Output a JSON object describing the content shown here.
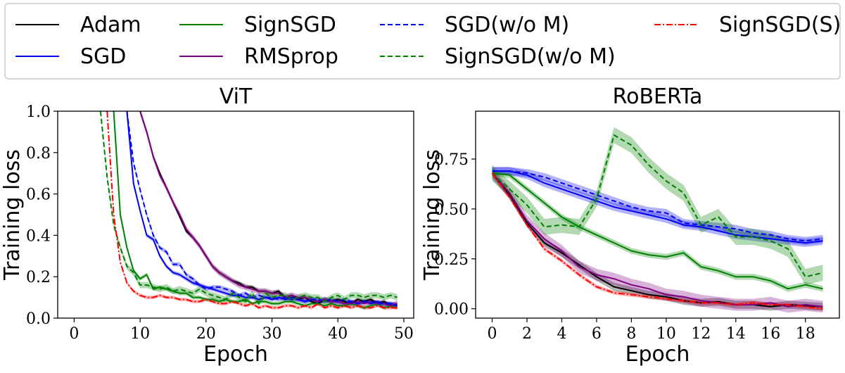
{
  "legend": {
    "entries": [
      {
        "name": "Adam",
        "color": "#000000",
        "dash": "solid"
      },
      {
        "name": "SGD",
        "color": "#0000ee",
        "dash": "solid"
      },
      {
        "name": "SignSGD",
        "color": "#008000",
        "dash": "solid"
      },
      {
        "name": "RMSprop",
        "color": "#800080",
        "dash": "solid"
      },
      {
        "name": "SGD(w/o M)",
        "color": "#0000ee",
        "dash": "dashed"
      },
      {
        "name": "SignSGD(w/o M)",
        "color": "#008000",
        "dash": "dashed"
      },
      {
        "name": "SignSGD(S)",
        "color": "#ff0000",
        "dash": "dashdot"
      }
    ]
  },
  "chart_data": [
    {
      "type": "line",
      "title": "ViT",
      "xlabel": "Epoch",
      "ylabel": "Training loss",
      "xlim": [
        -2.5,
        51.5
      ],
      "ylim": [
        0.0,
        1.0
      ],
      "xticks": [
        0,
        10,
        20,
        30,
        40,
        50
      ],
      "yticks": [
        0.0,
        0.2,
        0.4,
        0.6,
        0.8,
        1.0
      ],
      "ytick_labels": [
        "0.0",
        "0.2",
        "0.4",
        "0.6",
        "0.8",
        "1.0"
      ],
      "series": [
        {
          "name": "Adam",
          "x": [
            10,
            11,
            12,
            13,
            14,
            15,
            16,
            17,
            18,
            19,
            20,
            21,
            22,
            23,
            24,
            25,
            26,
            27,
            28,
            29,
            30,
            31,
            32,
            33,
            34,
            35,
            36,
            37,
            38,
            39,
            40,
            41,
            42,
            43,
            44,
            45,
            46,
            47,
            48,
            49
          ],
          "values": [
            1.0,
            0.9,
            0.78,
            0.7,
            0.63,
            0.56,
            0.49,
            0.42,
            0.39,
            0.35,
            0.3,
            0.25,
            0.22,
            0.2,
            0.18,
            0.17,
            0.15,
            0.15,
            0.13,
            0.13,
            0.12,
            0.13,
            0.1,
            0.11,
            0.09,
            0.1,
            0.08,
            0.07,
            0.09,
            0.08,
            0.09,
            0.08,
            0.07,
            0.09,
            0.08,
            0.09,
            0.07,
            0.08,
            0.06,
            0.07
          ],
          "band": 0.01
        },
        {
          "name": "SGD",
          "x": [
            8,
            9,
            10,
            11,
            12,
            13,
            14,
            15,
            16,
            17,
            18,
            19,
            20,
            21,
            22,
            23,
            24,
            25,
            26,
            27,
            28,
            29,
            30,
            31,
            32,
            33,
            34,
            35,
            36,
            37,
            38,
            39,
            40,
            41,
            42,
            43,
            44,
            45,
            46,
            47,
            48,
            49
          ],
          "values": [
            1.0,
            0.65,
            0.52,
            0.4,
            0.38,
            0.3,
            0.25,
            0.22,
            0.21,
            0.19,
            0.17,
            0.16,
            0.15,
            0.14,
            0.13,
            0.12,
            0.11,
            0.11,
            0.1,
            0.1,
            0.09,
            0.1,
            0.09,
            0.1,
            0.09,
            0.1,
            0.09,
            0.08,
            0.09,
            0.08,
            0.09,
            0.08,
            0.08,
            0.07,
            0.08,
            0.07,
            0.08,
            0.07,
            0.08,
            0.07,
            0.07,
            0.06
          ],
          "band": 0.01
        },
        {
          "name": "SignSGD",
          "x": [
            6,
            7,
            8,
            9,
            10,
            11,
            12,
            13,
            14,
            15,
            16,
            17,
            18,
            19,
            20,
            21,
            22,
            23,
            24,
            25,
            26,
            27,
            28,
            29,
            30,
            31,
            32,
            33,
            34,
            35,
            36,
            37,
            38,
            39,
            40,
            41,
            42,
            43,
            44,
            45,
            46,
            47,
            48,
            49
          ],
          "values": [
            1.0,
            0.5,
            0.34,
            0.23,
            0.19,
            0.21,
            0.14,
            0.15,
            0.14,
            0.13,
            0.12,
            0.12,
            0.1,
            0.1,
            0.09,
            0.09,
            0.08,
            0.09,
            0.08,
            0.08,
            0.09,
            0.07,
            0.08,
            0.08,
            0.07,
            0.07,
            0.08,
            0.08,
            0.07,
            0.06,
            0.07,
            0.07,
            0.06,
            0.07,
            0.06,
            0.06,
            0.07,
            0.06,
            0.05,
            0.06,
            0.07,
            0.05,
            0.06,
            0.05
          ],
          "band": 0.01
        },
        {
          "name": "RMSprop",
          "x": [
            10,
            11,
            12,
            13,
            14,
            15,
            16,
            17,
            18,
            19,
            20,
            21,
            22,
            23,
            24,
            25,
            26,
            27,
            28,
            29,
            30,
            31,
            32,
            33,
            34,
            35,
            36,
            37,
            38,
            39,
            40,
            41,
            42,
            43,
            44,
            45,
            46,
            47,
            48,
            49
          ],
          "values": [
            1.0,
            0.9,
            0.78,
            0.69,
            0.63,
            0.56,
            0.5,
            0.43,
            0.39,
            0.35,
            0.3,
            0.25,
            0.22,
            0.2,
            0.18,
            0.16,
            0.15,
            0.14,
            0.13,
            0.13,
            0.12,
            0.12,
            0.1,
            0.11,
            0.1,
            0.1,
            0.09,
            0.08,
            0.09,
            0.08,
            0.08,
            0.07,
            0.07,
            0.08,
            0.07,
            0.08,
            0.07,
            0.07,
            0.06,
            0.07
          ],
          "band": 0.015
        },
        {
          "name": "SGD(w/o M)",
          "x": [
            8,
            9,
            10,
            11,
            12,
            13,
            14,
            15,
            16,
            17,
            18,
            19,
            20,
            21,
            22,
            23,
            24,
            25,
            26,
            27,
            28,
            29,
            30,
            31,
            32,
            33,
            34,
            35,
            36,
            37,
            38,
            39,
            40,
            41,
            42,
            43,
            44,
            45,
            46,
            47,
            48,
            49
          ],
          "values": [
            1.0,
            0.75,
            0.62,
            0.5,
            0.4,
            0.34,
            0.32,
            0.26,
            0.26,
            0.21,
            0.19,
            0.16,
            0.14,
            0.15,
            0.15,
            0.14,
            0.13,
            0.11,
            0.12,
            0.1,
            0.11,
            0.1,
            0.1,
            0.09,
            0.1,
            0.09,
            0.09,
            0.08,
            0.09,
            0.09,
            0.08,
            0.09,
            0.08,
            0.09,
            0.08,
            0.07,
            0.08,
            0.08,
            0.07,
            0.07,
            0.07,
            0.06
          ],
          "band": 0.01
        },
        {
          "name": "SignSGD(w/o M)",
          "x": [
            4,
            5,
            6,
            7,
            8,
            9,
            10,
            11,
            12,
            13,
            14,
            15,
            16,
            17,
            18,
            19,
            20,
            21,
            22,
            23,
            24,
            25,
            26,
            27,
            28,
            29,
            30,
            31,
            32,
            33,
            34,
            35,
            36,
            37,
            38,
            39,
            40,
            41,
            42,
            43,
            44,
            45,
            46,
            47,
            48,
            49
          ],
          "values": [
            1.0,
            0.68,
            0.45,
            0.34,
            0.25,
            0.22,
            0.16,
            0.16,
            0.15,
            0.14,
            0.15,
            0.13,
            0.14,
            0.13,
            0.12,
            0.14,
            0.12,
            0.11,
            0.1,
            0.09,
            0.12,
            0.1,
            0.08,
            0.12,
            0.07,
            0.12,
            0.1,
            0.11,
            0.11,
            0.09,
            0.1,
            0.11,
            0.1,
            0.1,
            0.08,
            0.1,
            0.11,
            0.09,
            0.11,
            0.11,
            0.1,
            0.11,
            0.11,
            0.1,
            0.11,
            0.1
          ],
          "band": 0.015
        },
        {
          "name": "SignSGD(S)",
          "x": [
            5,
            6,
            7,
            8,
            9,
            10,
            11,
            12,
            13,
            14,
            15,
            16,
            17,
            18,
            19,
            20,
            21,
            22,
            23,
            24,
            25,
            26,
            27,
            28,
            29,
            30,
            31,
            32,
            33,
            34,
            35,
            36,
            37,
            38,
            39,
            40,
            41,
            42,
            43,
            44,
            45,
            46,
            47,
            48,
            49
          ],
          "values": [
            1.0,
            0.5,
            0.27,
            0.17,
            0.13,
            0.11,
            0.1,
            0.1,
            0.11,
            0.1,
            0.1,
            0.09,
            0.09,
            0.08,
            0.08,
            0.09,
            0.08,
            0.07,
            0.07,
            0.08,
            0.07,
            0.06,
            0.07,
            0.05,
            0.06,
            0.05,
            0.05,
            0.06,
            0.06,
            0.05,
            0.06,
            0.05,
            0.07,
            0.05,
            0.06,
            0.05,
            0.06,
            0.05,
            0.06,
            0.05,
            0.05,
            0.06,
            0.05,
            0.05,
            0.05
          ],
          "band": 0.008
        }
      ]
    },
    {
      "type": "line",
      "title": "RoBERTa",
      "xlabel": "Epoch",
      "ylabel": "Training loss",
      "xlim": [
        -0.95,
        19.95
      ],
      "ylim": [
        -0.047,
        0.99
      ],
      "xticks": [
        0,
        2,
        4,
        6,
        8,
        10,
        12,
        14,
        16,
        18
      ],
      "yticks": [
        0.0,
        0.25,
        0.5,
        0.75
      ],
      "ytick_labels": [
        "0.00",
        "0.25",
        "0.50",
        "0.75"
      ],
      "series": [
        {
          "name": "Adam",
          "x": [
            0,
            1,
            2,
            3,
            4,
            5,
            6,
            7,
            8,
            9,
            10,
            11,
            12,
            13,
            14,
            15,
            16,
            17,
            18,
            19
          ],
          "values": [
            0.68,
            0.57,
            0.43,
            0.33,
            0.28,
            0.22,
            0.16,
            0.11,
            0.09,
            0.07,
            0.06,
            0.04,
            0.03,
            0.035,
            0.02,
            0.02,
            0.01,
            0.02,
            0.015,
            0.01
          ],
          "band": 0.02
        },
        {
          "name": "SGD",
          "x": [
            0,
            1,
            2,
            3,
            4,
            5,
            6,
            7,
            8,
            9,
            10,
            11,
            12,
            13,
            14,
            15,
            16,
            17,
            18,
            19
          ],
          "values": [
            0.69,
            0.69,
            0.67,
            0.63,
            0.6,
            0.57,
            0.54,
            0.51,
            0.49,
            0.47,
            0.45,
            0.42,
            0.41,
            0.39,
            0.37,
            0.36,
            0.35,
            0.34,
            0.33,
            0.34
          ],
          "band": 0.02
        },
        {
          "name": "SignSGD",
          "x": [
            0,
            1,
            2,
            3,
            4,
            5,
            6,
            7,
            8,
            9,
            10,
            11,
            12,
            13,
            14,
            15,
            16,
            17,
            18,
            19
          ],
          "values": [
            0.68,
            0.67,
            0.6,
            0.53,
            0.46,
            0.41,
            0.37,
            0.33,
            0.29,
            0.27,
            0.26,
            0.28,
            0.21,
            0.19,
            0.16,
            0.16,
            0.14,
            0.1,
            0.12,
            0.1
          ],
          "band": 0.015
        },
        {
          "name": "RMSprop",
          "x": [
            0,
            1,
            2,
            3,
            4,
            5,
            6,
            7,
            8,
            9,
            10,
            11,
            12,
            13,
            14,
            15,
            16,
            17,
            18,
            19
          ],
          "values": [
            0.68,
            0.58,
            0.44,
            0.35,
            0.29,
            0.21,
            0.17,
            0.15,
            0.12,
            0.1,
            0.07,
            0.06,
            0.04,
            0.03,
            0.02,
            0.02,
            0.03,
            0.01,
            0.02,
            0.01
          ],
          "band": 0.03
        },
        {
          "name": "SGD(w/o M)",
          "x": [
            0,
            1,
            2,
            3,
            4,
            5,
            6,
            7,
            8,
            9,
            10,
            11,
            12,
            13,
            14,
            15,
            16,
            17,
            18,
            19
          ],
          "values": [
            0.69,
            0.69,
            0.68,
            0.66,
            0.63,
            0.6,
            0.57,
            0.54,
            0.51,
            0.49,
            0.48,
            0.43,
            0.42,
            0.41,
            0.4,
            0.38,
            0.37,
            0.35,
            0.34,
            0.35
          ],
          "band": 0.02
        },
        {
          "name": "SignSGD(w/o M)",
          "x": [
            0,
            1,
            2,
            3,
            4,
            5,
            6,
            7,
            8,
            9,
            10,
            11,
            12,
            13,
            14,
            15,
            16,
            17,
            18,
            19
          ],
          "values": [
            0.68,
            0.6,
            0.52,
            0.41,
            0.42,
            0.41,
            0.55,
            0.87,
            0.82,
            0.72,
            0.64,
            0.58,
            0.42,
            0.46,
            0.36,
            0.36,
            0.34,
            0.3,
            0.16,
            0.18
          ],
          "band": 0.04
        },
        {
          "name": "SignSGD(S)",
          "x": [
            0,
            1,
            2,
            3,
            4,
            5,
            6,
            7,
            8,
            9,
            10,
            11,
            12,
            13,
            14,
            15,
            16,
            17,
            18,
            19
          ],
          "values": [
            0.68,
            0.56,
            0.42,
            0.3,
            0.24,
            0.17,
            0.11,
            0.08,
            0.07,
            0.06,
            0.05,
            0.04,
            0.03,
            0.03,
            0.02,
            0.03,
            0.02,
            0.02,
            0.01,
            0.0
          ],
          "band": 0.01
        }
      ]
    }
  ]
}
